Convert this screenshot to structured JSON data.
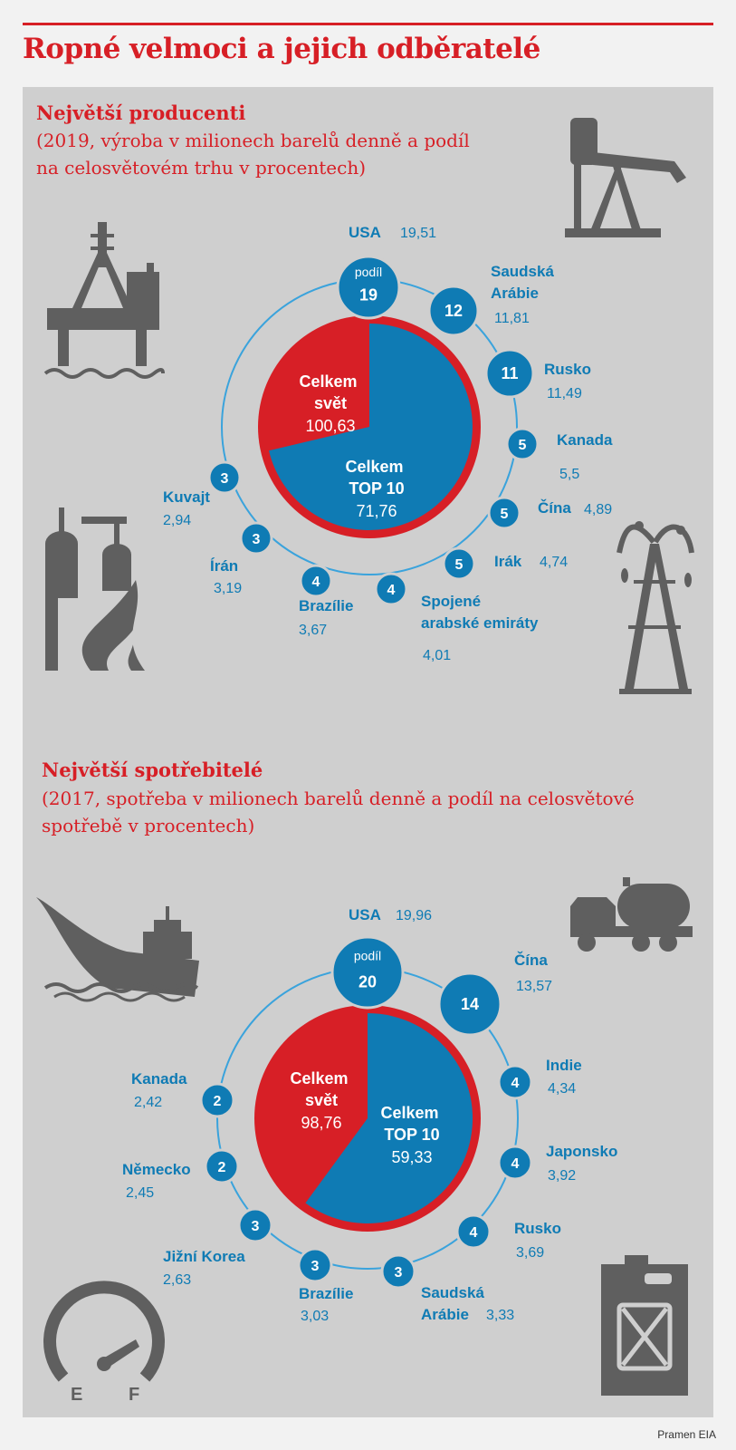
{
  "title": "Ropné velmoci a jejich odběratelé",
  "source": "Pramen EIA",
  "colors": {
    "red": "#d71f26",
    "blue": "#0f7bb4",
    "ring": "#3aa3dc",
    "icon": "#5f5f5f",
    "panel": "#cfcfcf"
  },
  "chart_data": [
    {
      "type": "pie",
      "title": "Největší producenti",
      "subtitle": "(2019, výroba v milionech barelů denně a podíl\nna celosvětovém trhu v procentech)",
      "share_label": "podíl",
      "total_label": "Celkem\nsvět",
      "total_value": "100,63",
      "top_label": "Celkem\nTOP 10",
      "top_value": "71,76",
      "slices": [
        {
          "name": "Celkem svět",
          "value": 100.63
        },
        {
          "name": "Celkem TOP 10",
          "value": 71.76
        }
      ],
      "countries": [
        {
          "name": "USA",
          "share": 19,
          "value": "19,51"
        },
        {
          "name": "Saudská\nArábie",
          "share": 12,
          "value": "11,81"
        },
        {
          "name": "Rusko",
          "share": 11,
          "value": "11,49"
        },
        {
          "name": "Kanada",
          "share": 5,
          "value": "5,5"
        },
        {
          "name": "Čína",
          "share": 5,
          "value": "4,89"
        },
        {
          "name": "Irák",
          "share": 5,
          "value": "4,74"
        },
        {
          "name": "Spojené\narabské emiráty",
          "share": 4,
          "value": "4,01"
        },
        {
          "name": "Brazílie",
          "share": 4,
          "value": "3,67"
        },
        {
          "name": "Írán",
          "share": 3,
          "value": "3,19"
        },
        {
          "name": "Kuvajt",
          "share": 3,
          "value": "2,94"
        }
      ]
    },
    {
      "type": "pie",
      "title": "Největší spotřebitelé",
      "subtitle": "(2017, spotřeba v milionech barelů denně a podíl na celosvětové\nspotřebě v procentech)",
      "share_label": "podíl",
      "total_label": "Celkem\nsvět",
      "total_value": "98,76",
      "top_label": "Celkem\nTOP 10",
      "top_value": "59,33",
      "slices": [
        {
          "name": "Celkem svět",
          "value": 98.76
        },
        {
          "name": "Celkem TOP 10",
          "value": 59.33
        }
      ],
      "countries": [
        {
          "name": "USA",
          "share": 20,
          "value": "19,96"
        },
        {
          "name": "Čína",
          "share": 14,
          "value": "13,57"
        },
        {
          "name": "Indie",
          "share": 4,
          "value": "4,34"
        },
        {
          "name": "Japonsko",
          "share": 4,
          "value": "3,92"
        },
        {
          "name": "Rusko",
          "share": 4,
          "value": "3,69"
        },
        {
          "name": "Saudská\nArábie",
          "share": 3,
          "value": "3,33"
        },
        {
          "name": "Brazílie",
          "share": 3,
          "value": "3,03"
        },
        {
          "name": "Jižní Korea",
          "share": 3,
          "value": "2,63"
        },
        {
          "name": "Německo",
          "share": 2,
          "value": "2,45"
        },
        {
          "name": "Kanada",
          "share": 2,
          "value": "2,42"
        }
      ]
    }
  ],
  "icons": {
    "producers": [
      "oil-platform-icon",
      "pumpjack-icon",
      "refinery-fire-icon",
      "oil-derrick-icon"
    ],
    "consumers": [
      "tanker-ship-icon",
      "tank-truck-icon",
      "fuel-gauge-icon",
      "jerrycan-icon"
    ],
    "gauge_e": "E",
    "gauge_f": "F"
  }
}
